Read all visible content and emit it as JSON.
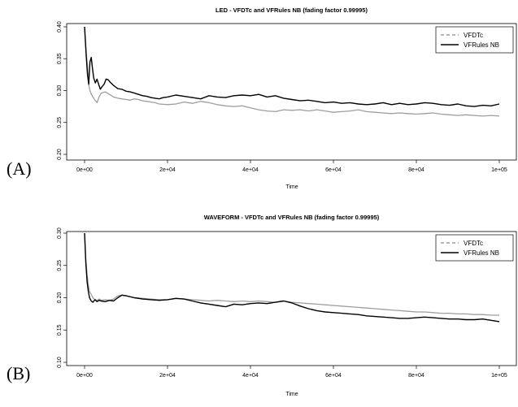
{
  "panel_labels": [
    "(A)",
    "(B)"
  ],
  "colors": {
    "VFDTc": "#9e9e9e",
    "VFRules NB": "#000000",
    "axis": "#000000"
  },
  "chart_data": [
    {
      "type": "line",
      "title": "LED - VFDTc and VFRules NB (fading factor 0.99995)",
      "xlabel": "Time",
      "ylabel": "",
      "xlim": [
        0,
        100000
      ],
      "ylim": [
        0.2,
        0.4
      ],
      "xticks": [
        0,
        20000,
        40000,
        60000,
        80000,
        100000
      ],
      "xtick_labels": [
        "0e+00",
        "2e+04",
        "4e+04",
        "6e+04",
        "8e+04",
        "1e+05"
      ],
      "yticks": [
        0.2,
        0.25,
        0.3,
        0.35,
        0.4
      ],
      "ytick_labels": [
        "0.20",
        "0.25",
        "0.30",
        "0.35",
        "0.40"
      ],
      "grid": false,
      "legend": "top-right",
      "series": [
        {
          "name": "VFDTc",
          "style": "dashed",
          "x": [
            0,
            400,
            800,
            1000,
            1300,
            1600,
            2000,
            2500,
            3000,
            3500,
            4000,
            5000,
            6000,
            7000,
            8000,
            9000,
            10000,
            11000,
            12000,
            13000,
            14000,
            15000,
            16000,
            17000,
            18000,
            20000,
            22000,
            24000,
            26000,
            28000,
            30000,
            32000,
            34000,
            36000,
            38000,
            40000,
            42000,
            44000,
            46000,
            48000,
            50000,
            52000,
            54000,
            56000,
            58000,
            60000,
            62000,
            64000,
            66000,
            68000,
            70000,
            72000,
            74000,
            76000,
            78000,
            80000,
            82000,
            84000,
            86000,
            88000,
            90000,
            92000,
            94000,
            96000,
            98000,
            100000
          ],
          "y": [
            0.4,
            0.36,
            0.33,
            0.31,
            0.3,
            0.295,
            0.29,
            0.285,
            0.281,
            0.29,
            0.296,
            0.298,
            0.294,
            0.29,
            0.288,
            0.287,
            0.286,
            0.285,
            0.287,
            0.286,
            0.284,
            0.283,
            0.282,
            0.281,
            0.279,
            0.278,
            0.279,
            0.282,
            0.28,
            0.283,
            0.281,
            0.278,
            0.276,
            0.275,
            0.276,
            0.273,
            0.27,
            0.268,
            0.267,
            0.27,
            0.269,
            0.27,
            0.268,
            0.27,
            0.268,
            0.266,
            0.267,
            0.268,
            0.27,
            0.267,
            0.266,
            0.265,
            0.264,
            0.265,
            0.264,
            0.263,
            0.264,
            0.265,
            0.263,
            0.262,
            0.261,
            0.262,
            0.261,
            0.26,
            0.261,
            0.26
          ]
        },
        {
          "name": "VFRules NB",
          "style": "solid",
          "x": [
            0,
            400,
            700,
            1000,
            1300,
            1600,
            1900,
            2200,
            2600,
            3000,
            3400,
            3800,
            4200,
            4700,
            5200,
            5700,
            6200,
            7000,
            8000,
            9000,
            10000,
            11000,
            12000,
            13000,
            14000,
            15000,
            16000,
            17000,
            18000,
            19000,
            20000,
            22000,
            24000,
            26000,
            28000,
            30000,
            32000,
            34000,
            36000,
            38000,
            40000,
            42000,
            44000,
            46000,
            48000,
            50000,
            52000,
            54000,
            56000,
            58000,
            60000,
            62000,
            64000,
            66000,
            68000,
            70000,
            72000,
            74000,
            76000,
            78000,
            80000,
            82000,
            84000,
            86000,
            88000,
            90000,
            92000,
            94000,
            96000,
            98000,
            100000
          ],
          "y": [
            0.4,
            0.355,
            0.325,
            0.31,
            0.345,
            0.352,
            0.335,
            0.32,
            0.312,
            0.318,
            0.31,
            0.302,
            0.306,
            0.31,
            0.318,
            0.317,
            0.313,
            0.308,
            0.303,
            0.302,
            0.299,
            0.298,
            0.296,
            0.294,
            0.292,
            0.291,
            0.289,
            0.288,
            0.287,
            0.289,
            0.29,
            0.293,
            0.291,
            0.289,
            0.287,
            0.292,
            0.29,
            0.289,
            0.292,
            0.293,
            0.292,
            0.294,
            0.29,
            0.292,
            0.288,
            0.286,
            0.284,
            0.285,
            0.283,
            0.281,
            0.282,
            0.28,
            0.281,
            0.279,
            0.278,
            0.279,
            0.281,
            0.278,
            0.28,
            0.278,
            0.279,
            0.281,
            0.28,
            0.278,
            0.277,
            0.279,
            0.276,
            0.275,
            0.277,
            0.276,
            0.279
          ]
        }
      ]
    },
    {
      "type": "line",
      "title": "WAVEFORM - VFDTc and VFRules NB (fading factor 0.99995)",
      "xlabel": "Time",
      "ylabel": "",
      "xlim": [
        0,
        100000
      ],
      "ylim": [
        0.1,
        0.3
      ],
      "xticks": [
        0,
        20000,
        40000,
        60000,
        80000,
        100000
      ],
      "xtick_labels": [
        "0e+00",
        "2e+04",
        "4e+04",
        "6e+04",
        "8e+04",
        "1e+05"
      ],
      "yticks": [
        0.1,
        0.15,
        0.2,
        0.25,
        0.3
      ],
      "ytick_labels": [
        "0.10",
        "0.15",
        "0.20",
        "0.25",
        "0.30"
      ],
      "grid": false,
      "legend": "top-right",
      "series": [
        {
          "name": "VFDTc",
          "style": "dashed",
          "x": [
            0,
            300,
            600,
            900,
            1200,
            1600,
            2000,
            2500,
            3000,
            3500,
            4000,
            5000,
            6000,
            7000,
            8000,
            9000,
            10000,
            12000,
            14000,
            16000,
            18000,
            20000,
            22000,
            24000,
            26000,
            28000,
            30000,
            32000,
            34000,
            36000,
            38000,
            40000,
            42000,
            44000,
            46000,
            48000,
            50000,
            52000,
            54000,
            56000,
            58000,
            60000,
            62000,
            64000,
            66000,
            68000,
            70000,
            72000,
            74000,
            76000,
            78000,
            80000,
            82000,
            84000,
            86000,
            88000,
            90000,
            92000,
            94000,
            96000,
            98000,
            100000
          ],
          "y": [
            0.3,
            0.26,
            0.235,
            0.22,
            0.21,
            0.205,
            0.2,
            0.197,
            0.196,
            0.198,
            0.196,
            0.197,
            0.196,
            0.198,
            0.203,
            0.204,
            0.203,
            0.2,
            0.199,
            0.198,
            0.197,
            0.197,
            0.199,
            0.198,
            0.197,
            0.196,
            0.195,
            0.196,
            0.195,
            0.194,
            0.195,
            0.194,
            0.195,
            0.194,
            0.193,
            0.195,
            0.193,
            0.192,
            0.191,
            0.19,
            0.189,
            0.188,
            0.187,
            0.186,
            0.185,
            0.184,
            0.183,
            0.182,
            0.181,
            0.18,
            0.179,
            0.178,
            0.178,
            0.177,
            0.176,
            0.176,
            0.175,
            0.175,
            0.174,
            0.174,
            0.173,
            0.173
          ]
        },
        {
          "name": "VFRules NB",
          "style": "solid",
          "x": [
            0,
            300,
            600,
            900,
            1200,
            1600,
            2000,
            2500,
            3000,
            3500,
            4000,
            5000,
            6000,
            7000,
            8000,
            9000,
            10000,
            12000,
            14000,
            16000,
            18000,
            20000,
            22000,
            24000,
            26000,
            28000,
            30000,
            32000,
            34000,
            36000,
            38000,
            40000,
            42000,
            44000,
            46000,
            48000,
            50000,
            52000,
            54000,
            56000,
            58000,
            60000,
            62000,
            64000,
            66000,
            68000,
            70000,
            72000,
            74000,
            76000,
            78000,
            80000,
            82000,
            84000,
            86000,
            88000,
            90000,
            92000,
            94000,
            96000,
            98000,
            100000
          ],
          "y": [
            0.3,
            0.255,
            0.225,
            0.21,
            0.2,
            0.195,
            0.193,
            0.197,
            0.194,
            0.196,
            0.195,
            0.194,
            0.196,
            0.195,
            0.2,
            0.204,
            0.203,
            0.2,
            0.198,
            0.197,
            0.196,
            0.197,
            0.199,
            0.198,
            0.195,
            0.192,
            0.19,
            0.188,
            0.186,
            0.19,
            0.189,
            0.191,
            0.192,
            0.191,
            0.193,
            0.195,
            0.192,
            0.187,
            0.183,
            0.18,
            0.178,
            0.177,
            0.176,
            0.175,
            0.174,
            0.172,
            0.171,
            0.17,
            0.169,
            0.168,
            0.168,
            0.169,
            0.17,
            0.169,
            0.168,
            0.167,
            0.167,
            0.166,
            0.166,
            0.167,
            0.165,
            0.163
          ]
        }
      ]
    }
  ]
}
